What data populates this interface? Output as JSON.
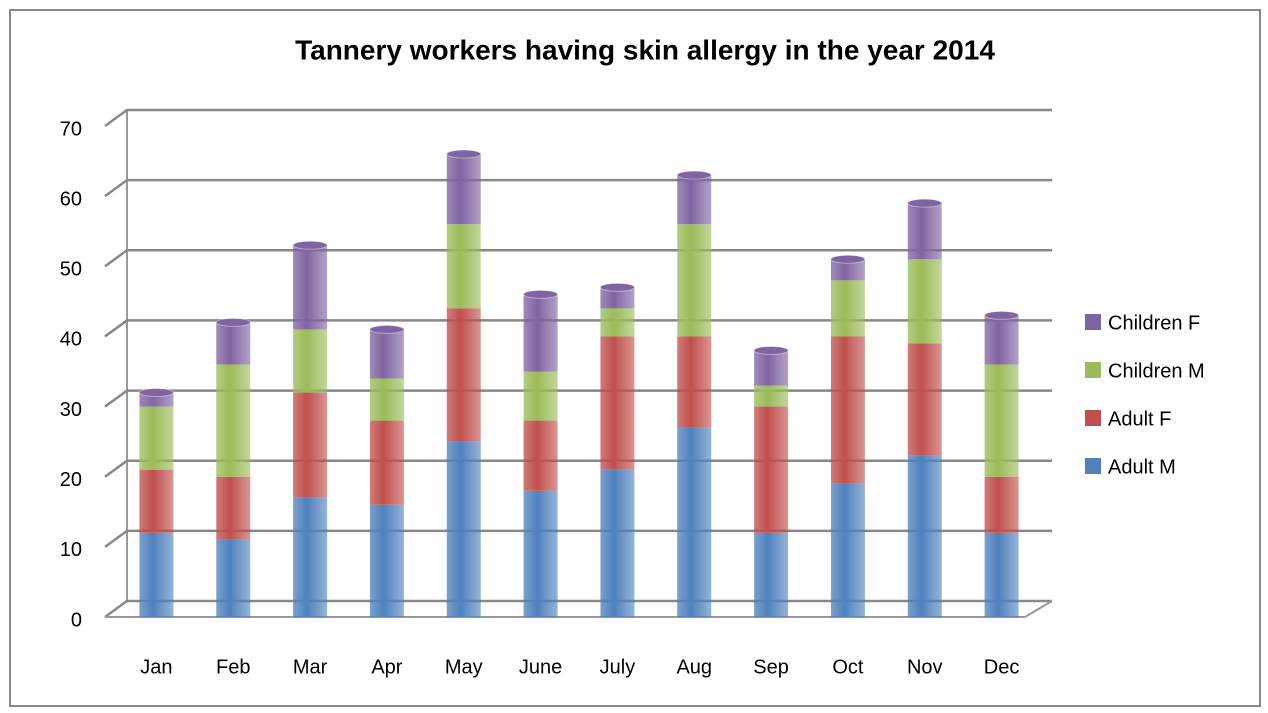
{
  "chart_data": {
    "type": "bar",
    "stacked": true,
    "title": "Tannery workers having skin allergy in the year 2014",
    "categories": [
      "Jan",
      "Feb",
      "Mar",
      "Apr",
      "May",
      "June",
      "July",
      "Aug",
      "Sep",
      "Oct",
      "Nov",
      "Dec"
    ],
    "series": [
      {
        "name": "Adult M",
        "color": "#4f81bd",
        "values": [
          12,
          11,
          17,
          16,
          25,
          18,
          21,
          27,
          12,
          19,
          23,
          12
        ]
      },
      {
        "name": "Adult F",
        "color": "#c0504d",
        "values": [
          9,
          9,
          15,
          12,
          19,
          10,
          19,
          13,
          18,
          21,
          16,
          8
        ]
      },
      {
        "name": "Children M",
        "color": "#9bbb59",
        "values": [
          9,
          16,
          9,
          6,
          12,
          7,
          4,
          16,
          3,
          8,
          12,
          16
        ]
      },
      {
        "name": "Children F",
        "color": "#8064a2",
        "values": [
          2,
          6,
          12,
          7,
          10,
          11,
          3,
          7,
          5,
          3,
          8,
          7
        ]
      }
    ],
    "ylim": [
      0,
      70
    ],
    "yticks": [
      0,
      10,
      20,
      30,
      40,
      50,
      60,
      70
    ],
    "grid": true,
    "legend": "right"
  }
}
